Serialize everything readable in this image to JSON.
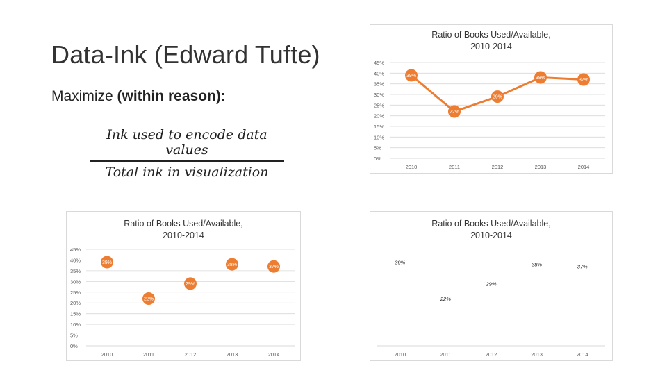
{
  "slide": {
    "title": "Data-Ink (Edward Tufte)",
    "maximize_prefix": "Maximize ",
    "maximize_bold": "(within reason):",
    "fraction_numerator": "Ink used to encode data values",
    "fraction_denominator": "Total ink in visualization"
  },
  "colors": {
    "accent": "#ED7D31",
    "grid": "#d9d9d9",
    "text": "#595959"
  },
  "chart_data": [
    {
      "type": "line",
      "title": "Ratio of Books Used/Available,\n2010-2014",
      "x": [
        "2010",
        "2011",
        "2012",
        "2013",
        "2014"
      ],
      "series": [
        {
          "values": [
            39,
            22,
            29,
            38,
            37
          ]
        }
      ],
      "data_labels": [
        "39%",
        "22%",
        "29%",
        "38%",
        "37%"
      ],
      "y_ticks": [
        "45%",
        "40%",
        "35%",
        "30%",
        "25%",
        "20%",
        "15%",
        "10%",
        "5%",
        "0%"
      ],
      "ylim": [
        0,
        45
      ],
      "grid": true,
      "style": "line-with-markers"
    },
    {
      "type": "scatter",
      "title": "Ratio of Books Used/Available,\n2010-2014",
      "x": [
        "2010",
        "2011",
        "2012",
        "2013",
        "2014"
      ],
      "series": [
        {
          "values": [
            39,
            22,
            29,
            38,
            37
          ]
        }
      ],
      "data_labels": [
        "39%",
        "22%",
        "29%",
        "38%",
        "37%"
      ],
      "y_ticks": [
        "45%",
        "40%",
        "35%",
        "30%",
        "25%",
        "20%",
        "15%",
        "10%",
        "5%",
        "0%"
      ],
      "ylim": [
        0,
        45
      ],
      "grid": true,
      "style": "markers-only"
    },
    {
      "type": "scatter",
      "title": "Ratio of Books Used/Available,\n2010-2014",
      "x": [
        "2010",
        "2011",
        "2012",
        "2013",
        "2014"
      ],
      "series": [
        {
          "values": [
            39,
            22,
            29,
            38,
            37
          ]
        }
      ],
      "data_labels": [
        "39%",
        "22%",
        "29%",
        "38%",
        "37%"
      ],
      "ylim": [
        0,
        45
      ],
      "grid": false,
      "style": "labels-only"
    }
  ]
}
